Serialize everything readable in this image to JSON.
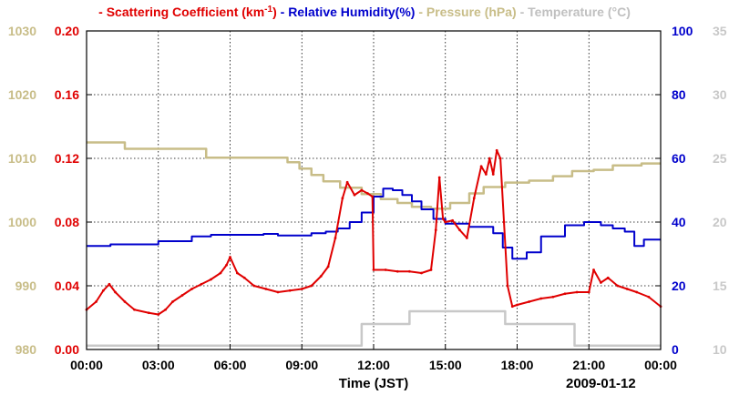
{
  "chart_data": {
    "type": "line",
    "legend": [
      {
        "prefix": "- ",
        "label": "Scattering Coefficient (km",
        "sup": "-1",
        "suffix": ")",
        "color": "#e00000"
      },
      {
        "prefix": " - ",
        "label": "Relative Humidity(%)",
        "sup": "",
        "suffix": "",
        "color": "#0000cc"
      },
      {
        "prefix": " - ",
        "label": "Pressure (hPa)",
        "sup": "",
        "suffix": "",
        "color": "#c8bd88"
      },
      {
        "prefix": " - ",
        "label": "Temperature (°C)",
        "sup": "",
        "suffix": "",
        "color": "#c0c0c0"
      }
    ],
    "xlabel": "Time (JST)",
    "date_label": "2009-01-12",
    "xlim": [
      0,
      24
    ],
    "x_ticks": [
      0,
      3,
      6,
      9,
      12,
      15,
      18,
      21,
      24
    ],
    "x_tick_labels": [
      "00:00",
      "03:00",
      "06:00",
      "09:00",
      "12:00",
      "15:00",
      "18:00",
      "21:00",
      "00:00"
    ],
    "axes": {
      "pressure": {
        "range": [
          980,
          1030
        ],
        "ticks": [
          "980",
          "990",
          "1000",
          "1010",
          "1020",
          "1030"
        ],
        "color": "#c8bd88",
        "side": "outer-left"
      },
      "scattering": {
        "range": [
          0,
          0.2
        ],
        "ticks": [
          "0.00",
          "0.04",
          "0.08",
          "0.12",
          "0.16",
          "0.20"
        ],
        "color": "#e00000",
        "side": "inner-left"
      },
      "humidity": {
        "range": [
          0,
          100
        ],
        "ticks": [
          "0",
          "20",
          "40",
          "60",
          "80",
          "100"
        ],
        "color": "#0000cc",
        "side": "inner-right"
      },
      "temperature": {
        "range": [
          10,
          35
        ],
        "ticks": [
          "10",
          "15",
          "20",
          "25",
          "30",
          "35"
        ],
        "color": "#c8c8c8",
        "side": "outer-right"
      }
    },
    "grid": true,
    "series": [
      {
        "name": "Pressure (hPa)",
        "axis": "pressure",
        "color": "#c8bd88",
        "step": true,
        "x": [
          0,
          1.6,
          5.0,
          8.0,
          8.4,
          8.9,
          9.4,
          9.9,
          10.6,
          11.5,
          12.3,
          13.0,
          13.6,
          14.4,
          15.2,
          16.0,
          16.6,
          17.5,
          18.5,
          19.5,
          20.3,
          21.2,
          22.0,
          23.2,
          24.0
        ],
        "values": [
          1012.5,
          1011.5,
          1010.1,
          1010.1,
          1009.4,
          1008.4,
          1007.4,
          1006.4,
          1005.4,
          1004.4,
          1003.6,
          1003.0,
          1002.4,
          1002.1,
          1003.0,
          1004.5,
          1005.5,
          1006.2,
          1006.5,
          1007.2,
          1008.0,
          1008.2,
          1008.9,
          1009.2,
          1009.2
        ]
      },
      {
        "name": "Relative Humidity(%)",
        "axis": "humidity",
        "color": "#0000cc",
        "step": true,
        "x": [
          0,
          1.0,
          3.0,
          4.4,
          5.2,
          7.0,
          7.4,
          8.0,
          9.4,
          10.0,
          10.5,
          11.0,
          11.5,
          12.0,
          12.4,
          12.8,
          13.2,
          13.6,
          14.0,
          14.5,
          15.0,
          16.0,
          17.0,
          17.4,
          17.8,
          18.4,
          19.0,
          20.0,
          20.8,
          21.5,
          22.0,
          22.5,
          22.9,
          23.3,
          24.0
        ],
        "values": [
          32.5,
          33.0,
          34.0,
          35.5,
          36.0,
          36.0,
          36.3,
          35.8,
          36.5,
          37.0,
          38.0,
          40.0,
          43.0,
          48.0,
          50.5,
          50.0,
          48.5,
          46.5,
          44.0,
          41.0,
          39.5,
          38.5,
          36.5,
          32.0,
          28.5,
          30.5,
          35.5,
          39.0,
          40.0,
          39.0,
          38.0,
          37.0,
          32.5,
          34.5,
          34.5
        ]
      },
      {
        "name": "Scattering Coefficient",
        "axis": "scattering",
        "color": "#e00000",
        "step": false,
        "x": [
          0,
          0.4,
          0.7,
          0.95,
          1.2,
          1.6,
          2.0,
          2.6,
          3.0,
          3.3,
          3.6,
          4.0,
          4.4,
          4.8,
          5.2,
          5.6,
          5.85,
          6.0,
          6.3,
          6.6,
          7.0,
          7.5,
          8.0,
          8.5,
          9.0,
          9.4,
          9.8,
          10.1,
          10.4,
          10.7,
          10.9,
          11.2,
          11.5,
          11.75,
          11.95,
          12.0,
          12.5,
          13.0,
          13.5,
          14.0,
          14.4,
          14.6,
          14.75,
          14.9,
          15.0,
          15.3,
          15.6,
          15.9,
          16.2,
          16.5,
          16.7,
          16.85,
          17.0,
          17.15,
          17.3,
          17.45,
          17.6,
          17.8,
          18.0,
          18.5,
          19.0,
          19.5,
          20.0,
          20.5,
          21.0,
          21.2,
          21.5,
          21.8,
          22.2,
          22.6,
          23.0,
          23.5,
          24.0
        ],
        "values": [
          0.025,
          0.03,
          0.037,
          0.041,
          0.036,
          0.03,
          0.025,
          0.023,
          0.022,
          0.025,
          0.03,
          0.034,
          0.038,
          0.041,
          0.044,
          0.048,
          0.053,
          0.058,
          0.048,
          0.045,
          0.04,
          0.038,
          0.036,
          0.037,
          0.038,
          0.04,
          0.046,
          0.052,
          0.07,
          0.095,
          0.105,
          0.097,
          0.1,
          0.098,
          0.096,
          0.05,
          0.05,
          0.049,
          0.049,
          0.048,
          0.05,
          0.075,
          0.108,
          0.082,
          0.08,
          0.081,
          0.075,
          0.07,
          0.095,
          0.115,
          0.11,
          0.12,
          0.11,
          0.125,
          0.12,
          0.08,
          0.04,
          0.027,
          0.028,
          0.03,
          0.032,
          0.033,
          0.035,
          0.036,
          0.036,
          0.05,
          0.042,
          0.045,
          0.04,
          0.038,
          0.036,
          0.033,
          0.027
        ]
      },
      {
        "name": "Temperature (°C)",
        "axis": "temperature",
        "color": "#c8c8c8",
        "step": true,
        "x": [
          0,
          8.0,
          11.5,
          13.5,
          15.0,
          17.5,
          18.5,
          20.0,
          20.4,
          24.0
        ],
        "values": [
          10.3,
          10.3,
          12.0,
          13.0,
          13.0,
          12.0,
          12.0,
          12.0,
          10.3,
          10.3
        ]
      }
    ]
  }
}
